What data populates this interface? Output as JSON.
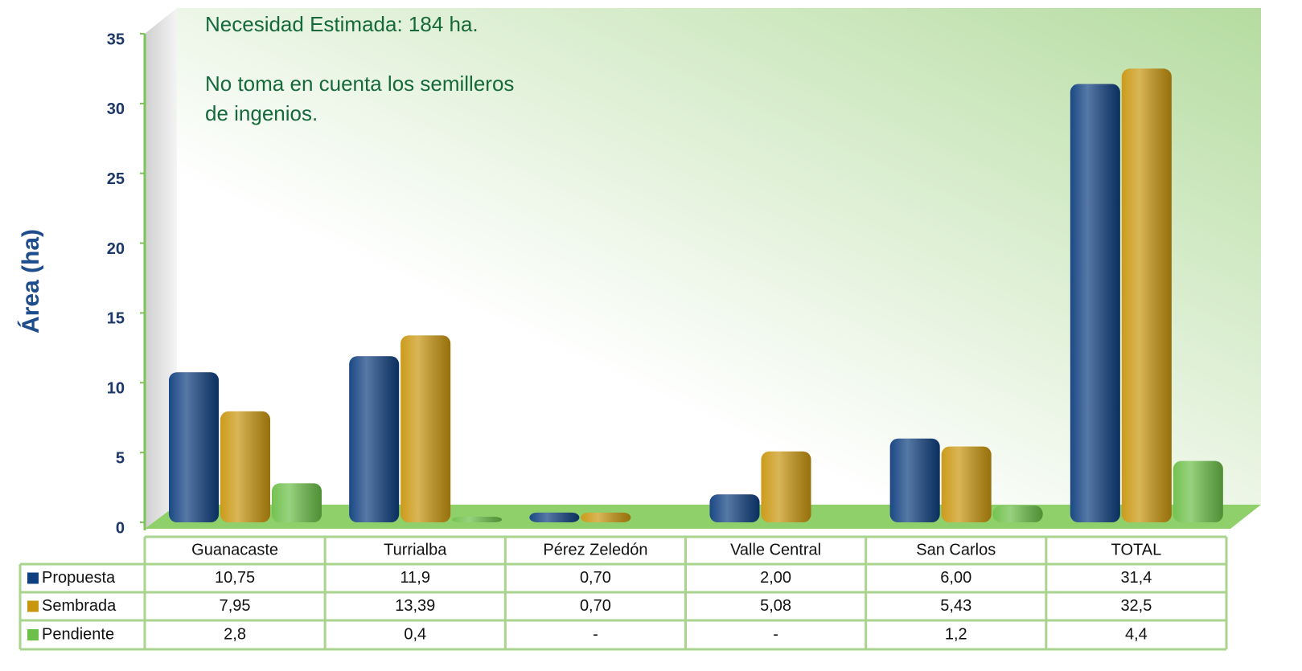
{
  "chart_data": {
    "type": "bar",
    "y_label": "Área (ha)",
    "annotations": [
      "Necesidad Estimada: 184 ha.",
      "No toma en cuenta los semilleros",
      "de ingenios."
    ],
    "categories": [
      "Guanacaste",
      "Turrialba",
      "Pérez Zeledón",
      "Valle Central",
      "San Carlos",
      "TOTAL"
    ],
    "series": [
      {
        "name": "Propuesta",
        "color": "#0f3f7f",
        "values": [
          10.75,
          11.9,
          0.7,
          2.0,
          6.0,
          31.4
        ],
        "value_labels": [
          "10,75",
          "11,9",
          "0,70",
          "2,00",
          "6,00",
          "31,4"
        ]
      },
      {
        "name": "Sembrada",
        "color": "#c9960f",
        "values": [
          7.95,
          13.39,
          0.7,
          5.08,
          5.43,
          32.5
        ],
        "value_labels": [
          "7,95",
          "13,39",
          "0,70",
          "5,08",
          "5,43",
          "32,5"
        ]
      },
      {
        "name": "Pendiente",
        "color": "#6cbf48",
        "values": [
          2.8,
          0.4,
          null,
          null,
          1.2,
          4.4
        ],
        "value_labels": [
          "2,8",
          "0,4",
          "-",
          "-",
          "1,2",
          "4,4"
        ]
      }
    ],
    "ylim": [
      0,
      35
    ],
    "yticks": [
      0,
      5,
      10,
      15,
      20,
      25,
      30,
      35
    ]
  }
}
